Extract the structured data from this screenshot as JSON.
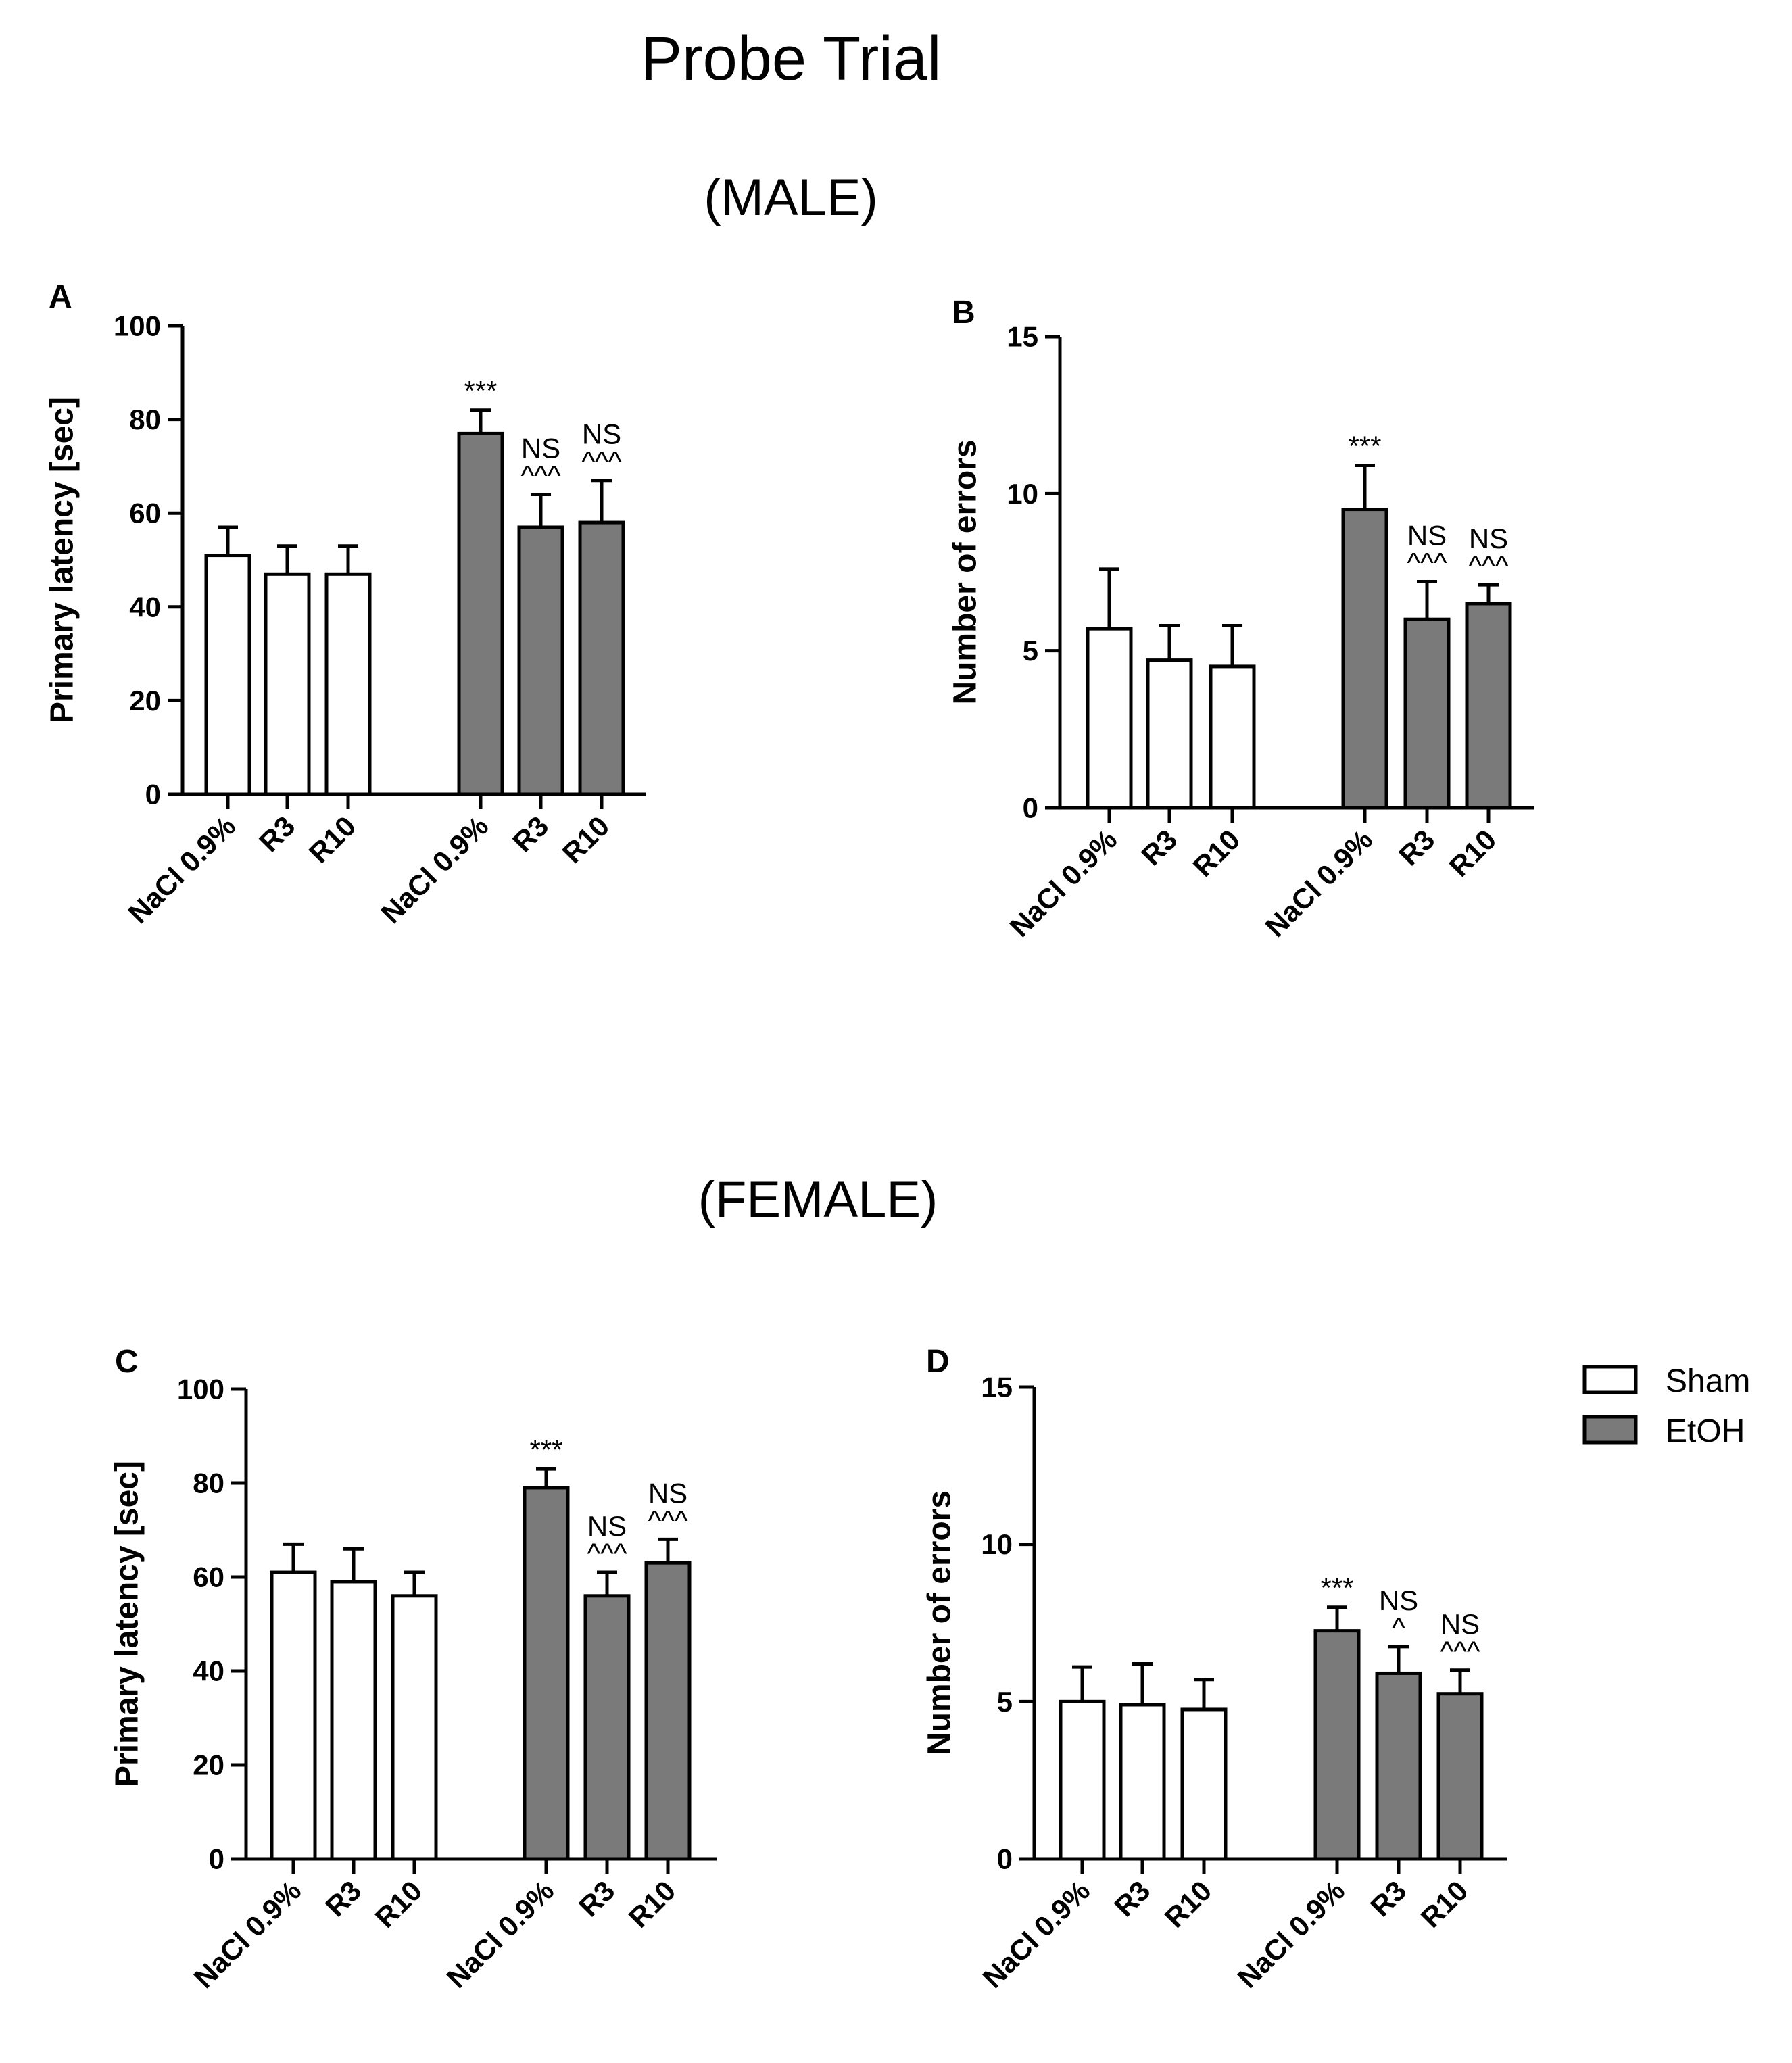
{
  "title": "Probe Trial",
  "sections": {
    "male": "(MALE)",
    "female": "(FEMALE)"
  },
  "colors": {
    "sham": "#ffffff",
    "etoh": "#7a7a7a",
    "stroke": "#000000"
  },
  "legend": [
    {
      "key": "sham",
      "label": "Sham"
    },
    {
      "key": "etoh",
      "label": "EtOH"
    }
  ],
  "chart_data": [
    {
      "panel": "A",
      "type": "bar",
      "title": "",
      "ylabel": "Primary latency [sec]",
      "xlabel": "",
      "ylim": [
        0,
        100
      ],
      "yticks": [
        0,
        20,
        40,
        60,
        80,
        100
      ],
      "categories": [
        "NaCl 0.9%",
        "R3",
        "R10",
        "NaCl 0.9%",
        "R3",
        "R10"
      ],
      "groups": [
        "Sham",
        "Sham",
        "Sham",
        "EtOH",
        "EtOH",
        "EtOH"
      ],
      "values": [
        51,
        47,
        47,
        77,
        57,
        58
      ],
      "errors": [
        6,
        6,
        6,
        5,
        7,
        9
      ],
      "annotations": [
        "",
        "",
        "",
        "***",
        "NS\n^^^",
        "NS\n^^^"
      ]
    },
    {
      "panel": "B",
      "type": "bar",
      "title": "",
      "ylabel": "Number of errors",
      "xlabel": "",
      "ylim": [
        0,
        15
      ],
      "yticks": [
        0,
        5,
        10,
        15
      ],
      "categories": [
        "NaCl 0.9%",
        "R3",
        "R10",
        "NaCl 0.9%",
        "R3",
        "R10"
      ],
      "groups": [
        "Sham",
        "Sham",
        "Sham",
        "EtOH",
        "EtOH",
        "EtOH"
      ],
      "values": [
        5.7,
        4.7,
        4.5,
        9.5,
        6.0,
        6.5
      ],
      "errors": [
        1.9,
        1.1,
        1.3,
        1.4,
        1.2,
        0.6
      ],
      "annotations": [
        "",
        "",
        "",
        "***",
        "NS\n^^^",
        "NS\n^^^"
      ]
    },
    {
      "panel": "C",
      "type": "bar",
      "title": "",
      "ylabel": "Primary latency [sec]",
      "xlabel": "",
      "ylim": [
        0,
        100
      ],
      "yticks": [
        0,
        20,
        40,
        60,
        80,
        100
      ],
      "categories": [
        "NaCl 0.9%",
        "R3",
        "R10",
        "NaCl 0.9%",
        "R3",
        "R10"
      ],
      "groups": [
        "Sham",
        "Sham",
        "Sham",
        "EtOH",
        "EtOH",
        "EtOH"
      ],
      "values": [
        61,
        59,
        56,
        79,
        56,
        63
      ],
      "errors": [
        6,
        7,
        5,
        4,
        5,
        5
      ],
      "annotations": [
        "",
        "",
        "",
        "***",
        "NS\n^^^",
        "NS\n^^^"
      ]
    },
    {
      "panel": "D",
      "type": "bar",
      "title": "",
      "ylabel": "Number of errors",
      "xlabel": "",
      "ylim": [
        0,
        15
      ],
      "yticks": [
        0,
        5,
        10,
        15
      ],
      "categories": [
        "NaCl 0.9%",
        "R3",
        "R10",
        "NaCl 0.9%",
        "R3",
        "R10"
      ],
      "groups": [
        "Sham",
        "Sham",
        "Sham",
        "EtOH",
        "EtOH",
        "EtOH"
      ],
      "values": [
        5.0,
        4.9,
        4.75,
        7.25,
        5.9,
        5.25
      ],
      "errors": [
        1.1,
        1.3,
        0.95,
        0.75,
        0.85,
        0.75
      ],
      "annotations": [
        "",
        "",
        "",
        "***",
        "NS\n^",
        "NS\n^^^"
      ]
    }
  ]
}
